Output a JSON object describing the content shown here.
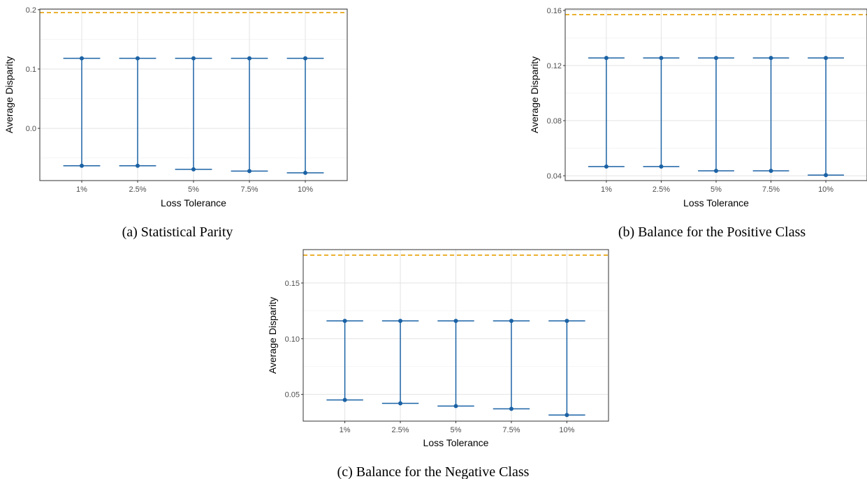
{
  "colors": {
    "series": "#1b62a5",
    "reference_line": "#e69f00",
    "grid_major": "#e3e3e3",
    "grid_minor": "#f2f2f2",
    "panel_border": "#333333"
  },
  "chart_data": [
    {
      "type": "errorbar",
      "caption": "(a) Statistical Parity",
      "xlabel": "Loss Tolerance",
      "ylabel": "Average Disparity",
      "categories": [
        "1%",
        "2.5%",
        "5%",
        "7.5%",
        "10%"
      ],
      "upper": [
        0.118,
        0.118,
        0.118,
        0.118,
        0.118
      ],
      "lower": [
        -0.063,
        -0.063,
        -0.069,
        -0.072,
        -0.075
      ],
      "reference_line": 0.195,
      "ylim": [
        -0.088,
        0.201
      ],
      "yticks": [
        0.0,
        0.1,
        0.2
      ],
      "ytick_labels": [
        "0.0",
        "0.1",
        "0.2"
      ],
      "grid": true
    },
    {
      "type": "errorbar",
      "caption": "(b) Balance for the Positive Class",
      "xlabel": "Loss Tolerance",
      "ylabel": "Average Disparity",
      "categories": [
        "1%",
        "2.5%",
        "5%",
        "7.5%",
        "10%"
      ],
      "upper": [
        0.1255,
        0.1255,
        0.1255,
        0.1255,
        0.1255
      ],
      "lower": [
        0.0467,
        0.0467,
        0.0436,
        0.0436,
        0.0405
      ],
      "reference_line": 0.157,
      "ylim": [
        0.0365,
        0.161
      ],
      "yticks": [
        0.04,
        0.08,
        0.12,
        0.16
      ],
      "ytick_labels": [
        "0.04",
        "0.08",
        "0.12",
        "0.16"
      ],
      "grid": true
    },
    {
      "type": "errorbar",
      "caption": "(c) Balance for the Negative Class",
      "xlabel": "Loss Tolerance",
      "ylabel": "Average Disparity",
      "categories": [
        "1%",
        "2.5%",
        "5%",
        "7.5%",
        "10%"
      ],
      "upper": [
        0.116,
        0.116,
        0.116,
        0.116,
        0.116
      ],
      "lower": [
        0.045,
        0.042,
        0.0395,
        0.037,
        0.0315
      ],
      "reference_line": 0.175,
      "ylim": [
        0.026,
        0.18
      ],
      "yticks": [
        0.05,
        0.1,
        0.15
      ],
      "ytick_labels": [
        "0.05",
        "0.10",
        "0.15"
      ],
      "grid": true
    }
  ]
}
